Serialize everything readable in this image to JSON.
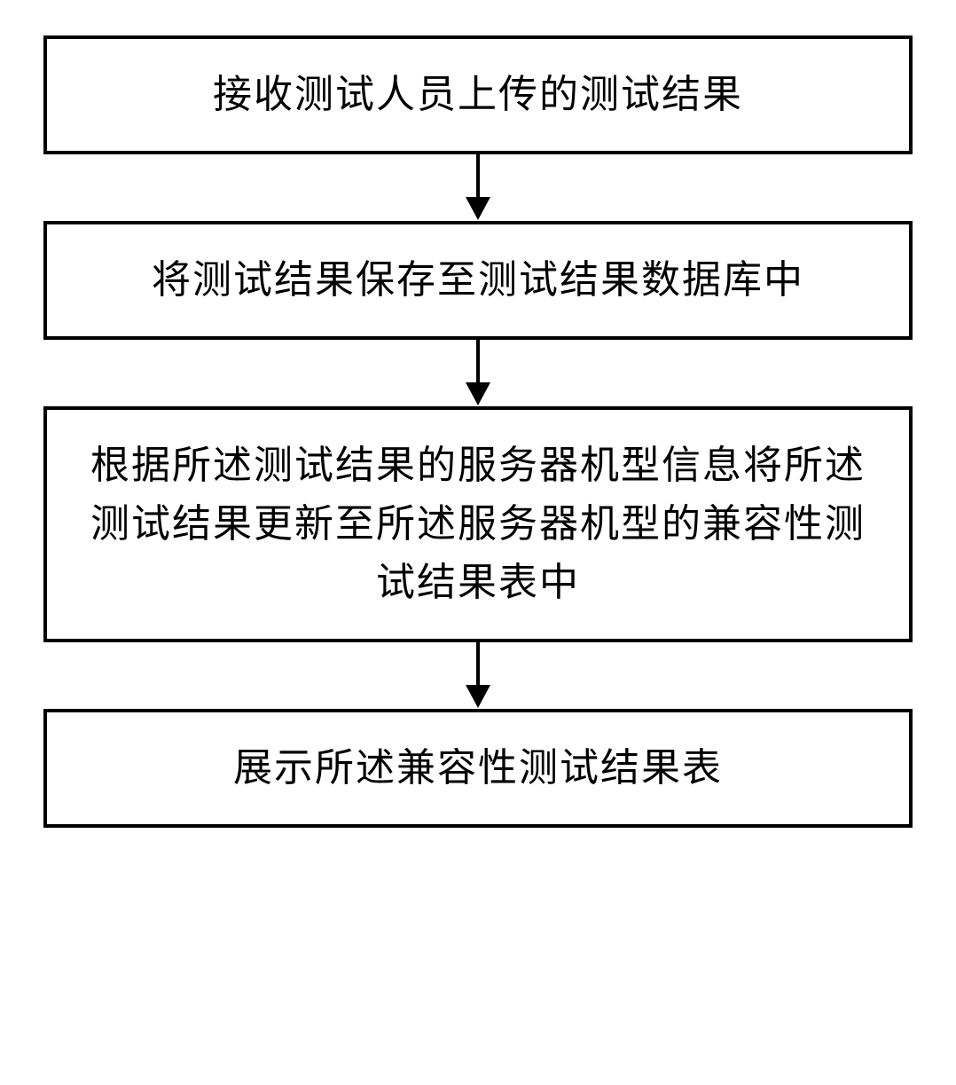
{
  "flowchart": {
    "type": "flowchart",
    "direction": "vertical",
    "background_color": "#ffffff",
    "box_border_color": "#000000",
    "box_border_width": 4,
    "box_background": "#ffffff",
    "text_color": "#000000",
    "font_family": "KaiTi, SimSun, serif",
    "font_size_pt": 32,
    "line_height": 1.5,
    "arrow_color": "#000000",
    "arrow_line_width": 4,
    "arrow_head_width": 28,
    "arrow_head_height": 26,
    "nodes": [
      {
        "id": "n1",
        "text": "接收测试人员上传的测试结果",
        "lines": 1
      },
      {
        "id": "n2",
        "text": "将测试结果保存至测试结果数据库中",
        "lines": 1
      },
      {
        "id": "n3",
        "text": "根据所述测试结果的服务器机型信息将所述测试结果更新至所述服务器机型的兼容性测试结果表中",
        "lines": 3
      },
      {
        "id": "n4",
        "text": "展示所述兼容性测试结果表",
        "lines": 1
      }
    ],
    "edges": [
      {
        "from": "n1",
        "to": "n2"
      },
      {
        "from": "n2",
        "to": "n3"
      },
      {
        "from": "n3",
        "to": "n4"
      }
    ]
  }
}
